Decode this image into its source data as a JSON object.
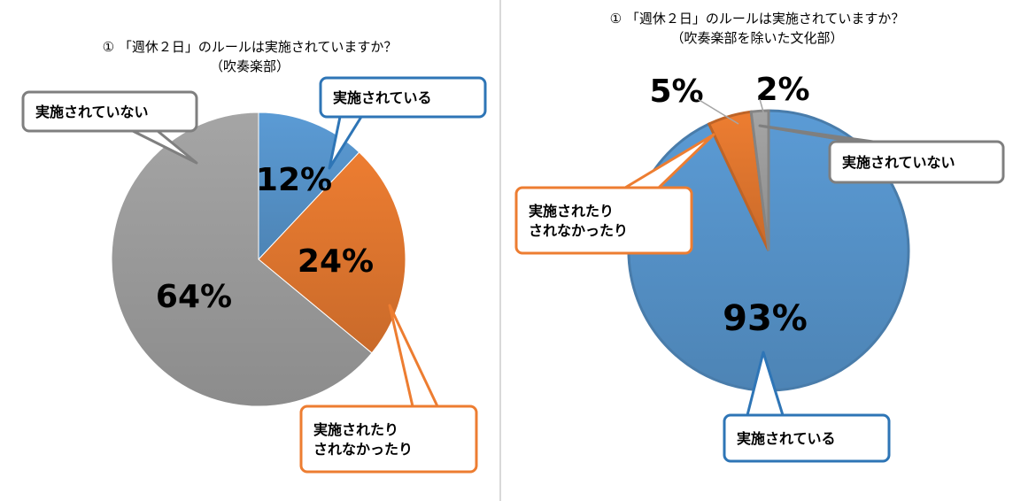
{
  "charts": [
    {
      "title": "① 「週休２日」のルールは実施されていますか？",
      "subtitle": "（吹奏楽部）"
    },
    {
      "title": "① 「週休２日」のルールは実施されていますか？",
      "subtitle": "（吹奏楽部を除いた文化部）"
    }
  ],
  "chart_data": [
    {
      "type": "pie",
      "title": "① 「週休２日」のルールは実施されていますか？",
      "subtitle": "（吹奏楽部）",
      "slices": [
        {
          "label": "実施されている",
          "value": 12,
          "display": "12%",
          "color": "#5b9bd5"
        },
        {
          "label": "実施されたり\nされなかったり",
          "value": 24,
          "display": "24%",
          "color": "#ed7d31"
        },
        {
          "label": "実施されていない",
          "value": 64,
          "display": "64%",
          "color": "#a5a5a5"
        }
      ]
    },
    {
      "type": "pie",
      "title": "① 「週休２日」のルールは実施されていますか？",
      "subtitle": "（吹奏楽部を除いた文化部）",
      "slices": [
        {
          "label": "実施されている",
          "value": 93,
          "display": "93%",
          "color": "#5b9bd5"
        },
        {
          "label": "実施されたり\nされなかったり",
          "value": 5,
          "display": "5%",
          "color": "#ed7d31"
        },
        {
          "label": "実施されていない",
          "value": 2,
          "display": "2%",
          "color": "#a5a5a5"
        }
      ]
    }
  ]
}
